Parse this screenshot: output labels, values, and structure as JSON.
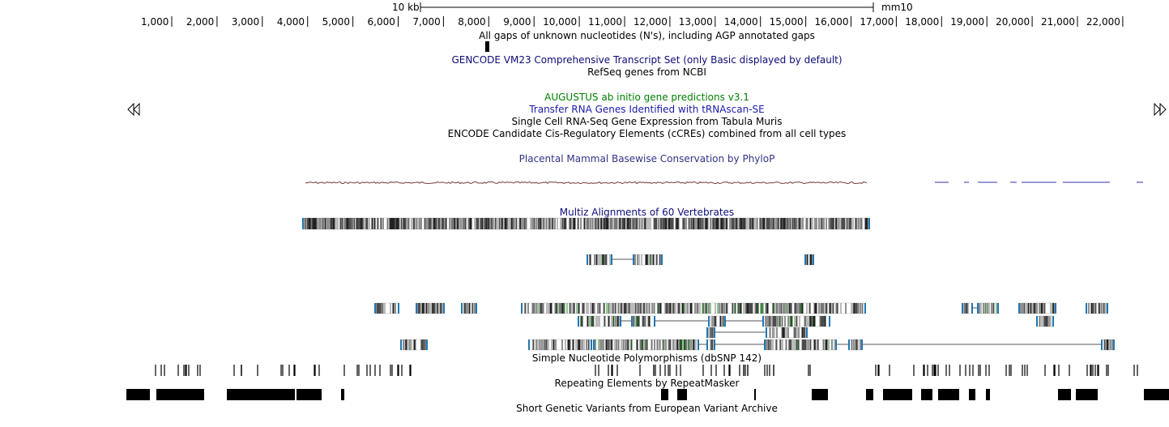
{
  "scale_bar": {
    "label": "10 kb",
    "assembly": "mm10"
  },
  "ruler": {
    "ticks": [
      "1,000",
      "2,000",
      "3,000",
      "4,000",
      "5,000",
      "6,000",
      "7,000",
      "8,000",
      "9,000",
      "10,000",
      "11,000",
      "12,000",
      "13,000",
      "14,000",
      "15,000",
      "16,000",
      "17,000",
      "18,000",
      "19,000",
      "20,000",
      "21,000",
      "22,000"
    ]
  },
  "nav": {
    "left_icon": "double-left-arrow-icon",
    "right_icon": "double-right-arrow-icon"
  },
  "tracks": {
    "gap": "All gaps of unknown nucleotides (N's), including AGP annotated gaps",
    "gencode": "GENCODE VM23 Comprehensive Transcript Set (only Basic displayed by default)",
    "refseq": "RefSeq genes from NCBI",
    "augustus": "AUGUSTUS ab initio gene predictions v3.1",
    "trna": "Transfer RNA Genes Identified with tRNAscan-SE",
    "tabula": "Single Cell RNA-Seq Gene Expression from Tabula Muris",
    "encode": "ENCODE Candidate Cis-Regulatory Elements (cCREs) combined from all cell types",
    "phylop": "Placental Mammal Basewise Conservation by PhyloP",
    "multiz": "Multiz Alignments of 60 Vertebrates",
    "snp": "Simple Nucleotide Polymorphisms (dbSNP 142)",
    "repeat": "Repeating Elements by RepeatMasker",
    "eva": "Short Genetic Variants from European Variant Archive"
  },
  "colors": {
    "gencode": "#0c0c78",
    "augustus": "#008000",
    "trna": "#1a1aaa",
    "phylop": "#333388",
    "multiz": "#0c0c78",
    "exon_edge": "#1f77b4",
    "green_feature": "#2e8b2e"
  }
}
